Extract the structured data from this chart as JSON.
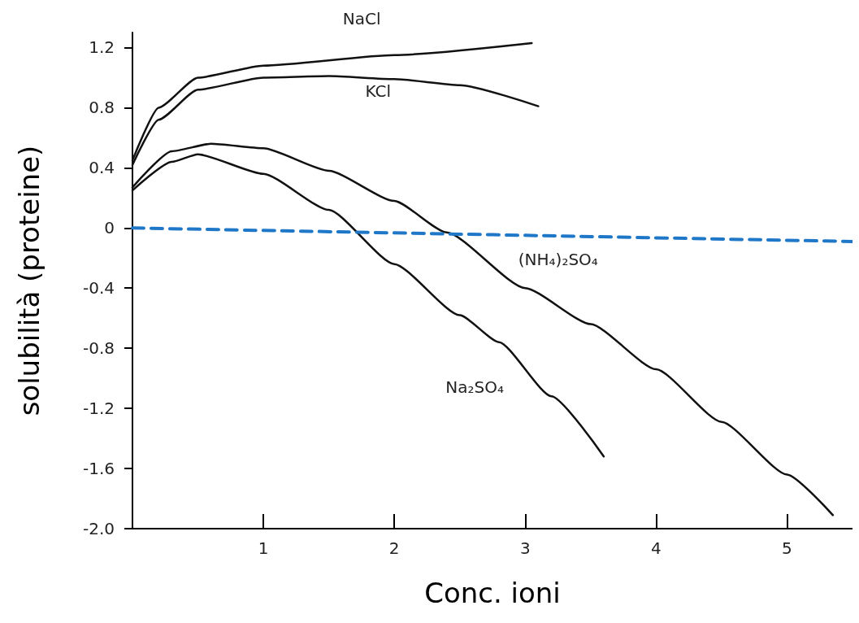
{
  "chart_data": {
    "type": "line",
    "xlabel": "Conc. ioni",
    "ylabel": "solubilità (proteine)",
    "xlim": [
      0,
      5.5
    ],
    "xticks": [
      1,
      2,
      3,
      4,
      5
    ],
    "ylim": [
      -2,
      1.3
    ],
    "yticks": [
      {
        "value": -2,
        "label": "-2.0"
      },
      -1.6,
      -1.2,
      -0.8,
      -0.4,
      0,
      0.4,
      0.8,
      1.2
    ],
    "grid": false,
    "legend": false,
    "marker": "none",
    "series": [
      {
        "name": "NaCl",
        "color": "#111111",
        "x": [
          0,
          0.2,
          0.5,
          1,
          2,
          3.05
        ],
        "values": [
          0.45,
          0.8,
          1.0,
          1.08,
          1.15,
          1.23
        ]
      },
      {
        "name": "KCl",
        "color": "#111111",
        "x": [
          0,
          0.2,
          0.5,
          1,
          1.5,
          2,
          2.5,
          3.1
        ],
        "values": [
          0.42,
          0.72,
          0.92,
          1.0,
          1.01,
          0.99,
          0.95,
          0.81
        ]
      },
      {
        "name": "(NH₄)₂SO₄",
        "color": "#111111",
        "x": [
          0,
          0.3,
          0.6,
          1,
          1.5,
          2,
          2.4,
          3,
          3.5,
          4,
          4.5,
          5,
          5.35
        ],
        "values": [
          0.27,
          0.51,
          0.56,
          0.53,
          0.38,
          0.18,
          -0.03,
          -0.4,
          -0.64,
          -0.94,
          -1.29,
          -1.64,
          -1.91
        ]
      },
      {
        "name": "Na₂SO₄",
        "color": "#111111",
        "x": [
          0,
          0.3,
          0.5,
          1,
          1.5,
          2,
          2.5,
          2.8,
          3.2,
          3.6
        ],
        "values": [
          0.25,
          0.44,
          0.49,
          0.36,
          0.12,
          -0.24,
          -0.58,
          -0.76,
          -1.12,
          -1.52
        ]
      },
      {
        "color": "#1f77c8",
        "line_style": "dashed",
        "x": [
          0,
          5.5
        ],
        "values": [
          0,
          -0.09
        ]
      }
    ]
  }
}
